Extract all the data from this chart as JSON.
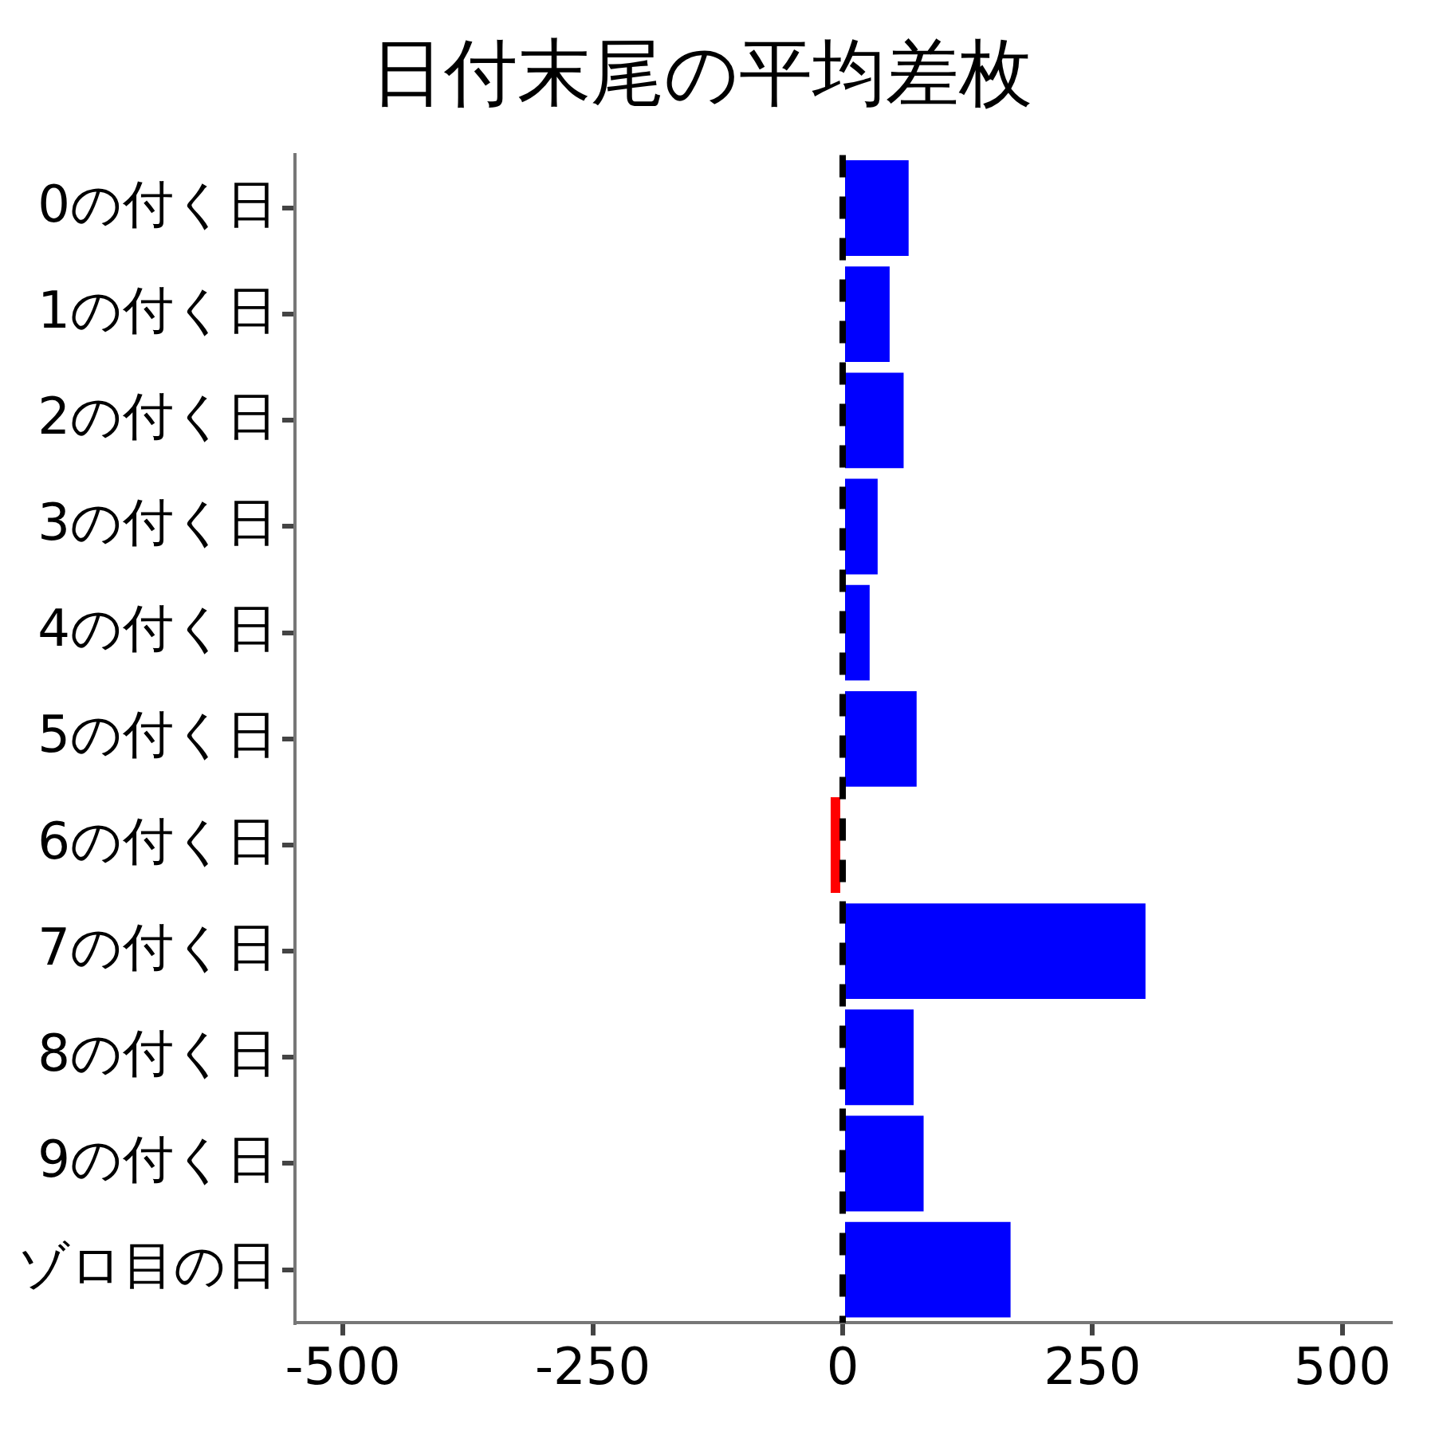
{
  "chart_data": {
    "type": "bar",
    "orientation": "horizontal",
    "title": "日付末尾の平均差枚",
    "categories": [
      "0の付く日",
      "1の付く日",
      "2の付く日",
      "3の付く日",
      "4の付く日",
      "5の付く日",
      "6の付く日",
      "7の付く日",
      "8の付く日",
      "9の付く日",
      "ゾロ目の日"
    ],
    "values": [
      66,
      47,
      61,
      35,
      27,
      74,
      -12,
      303,
      71,
      81,
      168
    ],
    "colors": [
      "#0000ff",
      "#0000ff",
      "#0000ff",
      "#0000ff",
      "#0000ff",
      "#0000ff",
      "#ff0000",
      "#0000ff",
      "#0000ff",
      "#0000ff",
      "#0000ff"
    ],
    "xlim": [
      -548,
      548
    ],
    "xticks": [
      -500,
      -250,
      0,
      250,
      500
    ],
    "ref_lines": [
      {
        "axis": "x",
        "value": 0,
        "color": "#000000",
        "line_style": "dashed"
      }
    ],
    "grid": false,
    "legend": false
  }
}
